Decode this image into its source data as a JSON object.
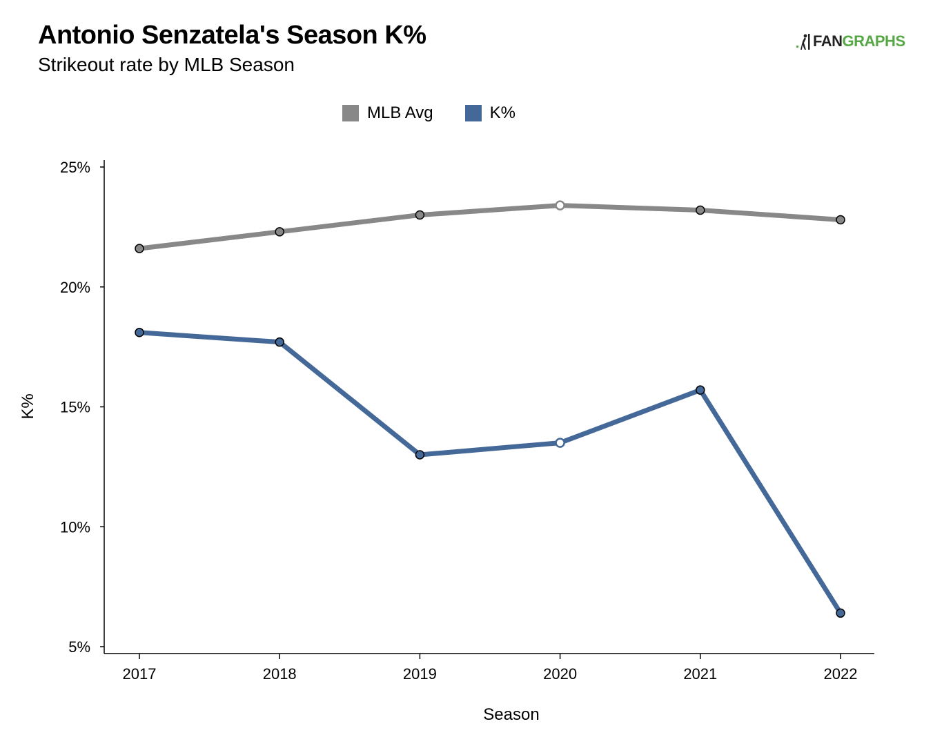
{
  "header": {
    "title": "Antonio Senzatela's Season K%",
    "subtitle": "Strikeout rate by MLB Season",
    "logo_fan": "FAN",
    "logo_graphs": "GRAPHS"
  },
  "colors": {
    "mlb_avg": "#888888",
    "k_pct": "#446898",
    "axis": "#000000",
    "logo_green": "#56a845"
  },
  "chart_data": {
    "type": "line",
    "x": [
      2017,
      2018,
      2019,
      2020,
      2021,
      2022
    ],
    "x_tick_labels": [
      "2017",
      "2018",
      "2019",
      "2020",
      "2021",
      "2022"
    ],
    "xlabel": "Season",
    "ylabel": "K%",
    "ylim": [
      5,
      25
    ],
    "y_ticks": [
      5,
      10,
      15,
      20,
      25
    ],
    "y_tick_labels": [
      "5%",
      "10%",
      "15%",
      "20%",
      "25%"
    ],
    "grid": false,
    "legend_position": "top-center",
    "series": [
      {
        "name": "MLB Avg",
        "color": "#888888",
        "values": [
          21.6,
          22.3,
          23.0,
          23.4,
          23.2,
          22.8
        ],
        "hollow_points": [
          2020
        ]
      },
      {
        "name": "K%",
        "color": "#446898",
        "values": [
          18.1,
          17.7,
          13.0,
          13.5,
          15.7,
          6.4
        ],
        "hollow_points": [
          2020
        ]
      }
    ]
  }
}
